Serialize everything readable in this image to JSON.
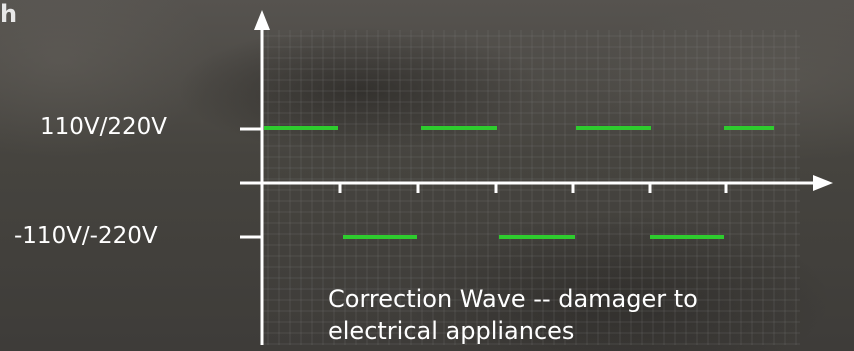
{
  "diagram": {
    "y_labels": {
      "positive": "110V/220V",
      "negative": "-110V/-220V"
    },
    "x_axis_unit": "h",
    "caption_lines": [
      "Correction Wave -- damager to",
      "electrical appliances"
    ],
    "wave_color": "#2ecc2e",
    "axis_color": "#ffffff",
    "grid_color": "#8a8a8a"
  }
}
